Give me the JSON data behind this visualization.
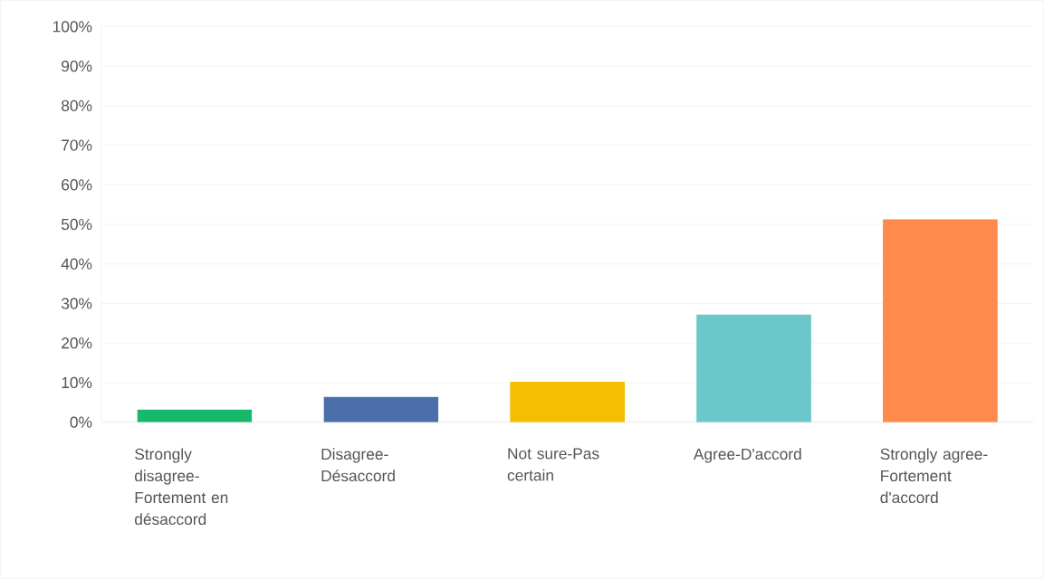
{
  "chart_data": {
    "type": "bar",
    "categories": [
      "Strongly disagree-Fortement en désaccord",
      "Disagree-Désaccord",
      "Not sure-Pas certain",
      "Agree-D'accord",
      "Strongly agree-Fortement d'accord"
    ],
    "values": [
      3.2,
      6.4,
      10.2,
      27.2,
      51.3
    ],
    "colors": [
      "#16b96b",
      "#4a6fa9",
      "#f6be00",
      "#6bc7ca",
      "#fe8a4c"
    ],
    "ylim": [
      0,
      100
    ],
    "yticks": [
      {
        "value": 0,
        "label": "0%"
      },
      {
        "value": 10,
        "label": "10%"
      },
      {
        "value": 20,
        "label": "20%"
      },
      {
        "value": 30,
        "label": "30%"
      },
      {
        "value": 40,
        "label": "40%"
      },
      {
        "value": 50,
        "label": "50%"
      },
      {
        "value": 60,
        "label": "60%"
      },
      {
        "value": 70,
        "label": "70%"
      },
      {
        "value": 80,
        "label": "80%"
      },
      {
        "value": 90,
        "label": "90%"
      },
      {
        "value": 100,
        "label": "100%"
      }
    ],
    "grid": "y"
  }
}
